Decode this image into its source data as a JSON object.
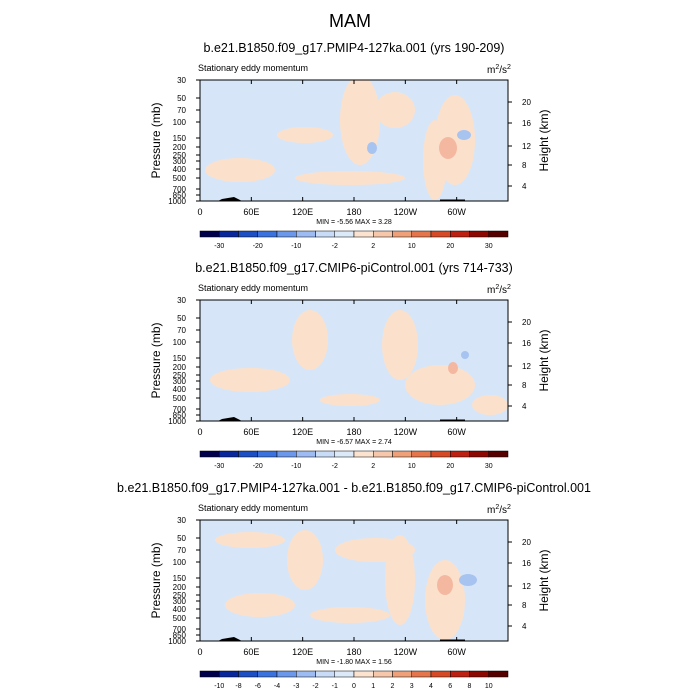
{
  "figure": {
    "title": "MAM",
    "colors": {
      "background_field": "#d6e6f8",
      "positive_field": "#fbe1cc",
      "strong_positive": "#f4b8a0",
      "negative_field": "#a7c4f0",
      "topography": "#000000"
    }
  },
  "chart_data": [
    {
      "type": "heatmap",
      "title": "b.e21.B1850.f09_g17.PMIP4-127ka.001 (yrs 190-209)",
      "left_label": "Stationary eddy momentum",
      "units_base": "m",
      "units_exp1": "2",
      "units_mid": "/s",
      "units_exp2": "2",
      "ylabel": "Pressure (mb)",
      "y2label": "Height (km)",
      "x_ticks": [
        "0",
        "60E",
        "120E",
        "180",
        "120W",
        "60W"
      ],
      "y_ticks": [
        "30",
        "50",
        "70",
        "100",
        "150",
        "200",
        "250",
        "300",
        "400",
        "500",
        "700",
        "850",
        "1000"
      ],
      "y2_ticks": [
        "20",
        "16",
        "12",
        "8",
        "4"
      ],
      "minmax": "MIN = -5.56  MAX =  3.28",
      "min": -5.56,
      "max": 3.28,
      "colorbar_labels": [
        "-30",
        "-20",
        "-10",
        "-2",
        "2",
        "10",
        "20",
        "30"
      ],
      "colorbar_colors": [
        "#00004d",
        "#08289c",
        "#1c4ec6",
        "#3a72e0",
        "#6c98ec",
        "#9ebcf4",
        "#c8dcf8",
        "#dbe9f8",
        "#fbe3d0",
        "#f7c7ab",
        "#f0a078",
        "#e5764c",
        "#d74a26",
        "#bd2010",
        "#8c0800",
        "#560000"
      ]
    },
    {
      "type": "heatmap",
      "title": "b.e21.B1850.f09_g17.CMIP6-piControl.001 (yrs 714-733)",
      "left_label": "Stationary eddy momentum",
      "units_base": "m",
      "units_exp1": "2",
      "units_mid": "/s",
      "units_exp2": "2",
      "ylabel": "Pressure (mb)",
      "y2label": "Height (km)",
      "x_ticks": [
        "0",
        "60E",
        "120E",
        "180",
        "120W",
        "60W"
      ],
      "y_ticks": [
        "30",
        "50",
        "70",
        "100",
        "150",
        "200",
        "250",
        "300",
        "400",
        "500",
        "700",
        "850",
        "1000"
      ],
      "y2_ticks": [
        "20",
        "16",
        "12",
        "8",
        "4"
      ],
      "minmax": "MIN = -6.57  MAX =  2.74",
      "min": -6.57,
      "max": 2.74,
      "colorbar_labels": [
        "-30",
        "-20",
        "-10",
        "-2",
        "2",
        "10",
        "20",
        "30"
      ],
      "colorbar_colors": [
        "#00004d",
        "#08289c",
        "#1c4ec6",
        "#3a72e0",
        "#6c98ec",
        "#9ebcf4",
        "#c8dcf8",
        "#dbe9f8",
        "#fbe3d0",
        "#f7c7ab",
        "#f0a078",
        "#e5764c",
        "#d74a26",
        "#bd2010",
        "#8c0800",
        "#560000"
      ]
    },
    {
      "type": "heatmap",
      "title": "b.e21.B1850.f09_g17.PMIP4-127ka.001 - b.e21.B1850.f09_g17.CMIP6-piControl.001",
      "left_label": "Stationary eddy momentum",
      "units_base": "m",
      "units_exp1": "2",
      "units_mid": "/s",
      "units_exp2": "2",
      "ylabel": "Pressure (mb)",
      "y2label": "Height (km)",
      "x_ticks": [
        "0",
        "60E",
        "120E",
        "180",
        "120W",
        "60W"
      ],
      "y_ticks": [
        "30",
        "50",
        "70",
        "100",
        "150",
        "200",
        "250",
        "300",
        "400",
        "500",
        "700",
        "850",
        "1000"
      ],
      "y2_ticks": [
        "20",
        "16",
        "12",
        "8",
        "4"
      ],
      "minmax": "MIN = -1.80  MAX =  1.56",
      "min": -1.8,
      "max": 1.56,
      "colorbar_labels": [
        "-10",
        "-8",
        "-6",
        "-4",
        "-3",
        "-2",
        "-1",
        "0",
        "1",
        "2",
        "3",
        "4",
        "6",
        "8",
        "10"
      ],
      "colorbar_colors": [
        "#00004d",
        "#08289c",
        "#1c4ec6",
        "#3a72e0",
        "#6c98ec",
        "#9ebcf4",
        "#c8dcf8",
        "#dbe9f8",
        "#fbe3d0",
        "#f7c7ab",
        "#f0a078",
        "#e5764c",
        "#d74a26",
        "#bd2010",
        "#8c0800",
        "#560000"
      ]
    }
  ]
}
